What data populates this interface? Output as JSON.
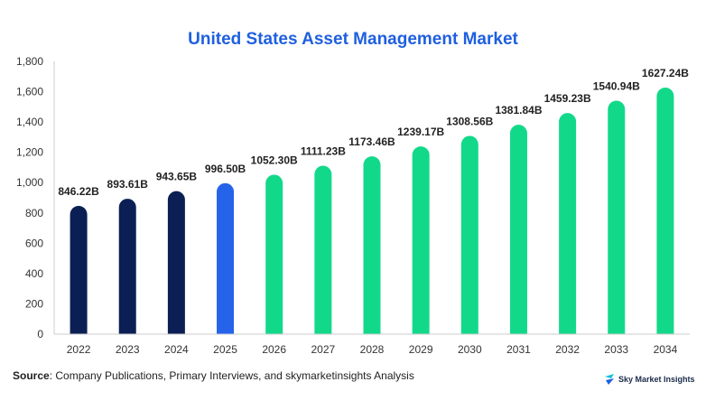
{
  "chart_data": {
    "type": "bar",
    "title": "United States Asset Management Market",
    "xlabel": "",
    "ylabel": "",
    "categories": [
      "2022",
      "2023",
      "2024",
      "2025",
      "2026",
      "2027",
      "2028",
      "2029",
      "2030",
      "2031",
      "2032",
      "2033",
      "2034"
    ],
    "values": [
      846.22,
      893.61,
      943.65,
      996.5,
      1052.3,
      1111.23,
      1173.46,
      1239.17,
      1308.56,
      1381.84,
      1459.23,
      1540.94,
      1627.24
    ],
    "data_labels": [
      "846.22B",
      "893.61B",
      "943.65B",
      "996.50B",
      "1052.30B",
      "1111.23B",
      "1173.46B",
      "1239.17B",
      "1308.56B",
      "1381.84B",
      "1459.23B",
      "1540.94B",
      "1627.24B"
    ],
    "y_ticks": [
      "0",
      "200",
      "400",
      "600",
      "800",
      "1,000",
      "1,200",
      "1,400",
      "1,600",
      "1,800"
    ],
    "ylim": [
      0,
      1800
    ],
    "grid": false,
    "legend": "none",
    "colors": {
      "historical": "#0b1f54",
      "current": "#2563eb",
      "forecast": "#12d98a",
      "axis": "#cccccc",
      "title": "#1f5fe0"
    },
    "bar_color_groups": [
      "historical",
      "historical",
      "historical",
      "current",
      "forecast",
      "forecast",
      "forecast",
      "forecast",
      "forecast",
      "forecast",
      "forecast",
      "forecast",
      "forecast"
    ]
  },
  "footer": {
    "source_label": "Source",
    "source_text": ": Company Publications, Primary Interviews, and skymarketinsights Analysis",
    "brand_name": "Sky Market Insights",
    "brand_icon": "brand-logo-icon"
  }
}
